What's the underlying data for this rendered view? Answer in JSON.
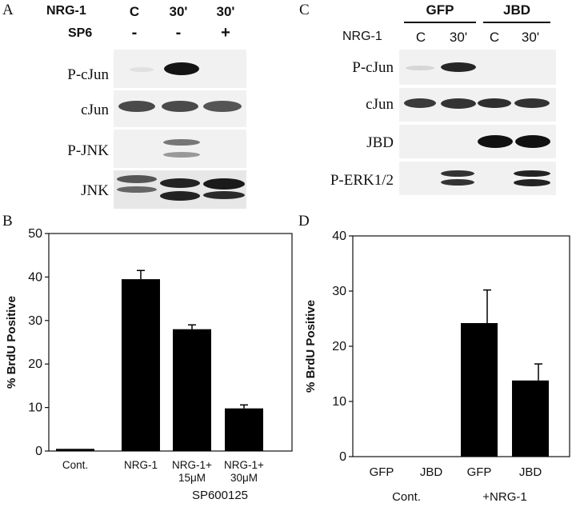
{
  "panel_a": {
    "label": "A",
    "header_rows": [
      {
        "name": "NRG-1",
        "values": [
          "C",
          "30'",
          "30'"
        ]
      },
      {
        "name": "SP6",
        "values": [
          "-",
          "-",
          "+"
        ]
      }
    ],
    "rows": [
      "P-cJun",
      "cJun",
      "P-JNK",
      "JNK"
    ]
  },
  "panel_c": {
    "label": "C",
    "groups": [
      "GFP",
      "JBD"
    ],
    "header_name": "NRG-1",
    "lanes": [
      "C",
      "30'",
      "C",
      "30'"
    ],
    "rows": [
      "P-cJun",
      "cJun",
      "JBD",
      "P-ERK1/2"
    ]
  },
  "chart_data": [
    {
      "panel": "B",
      "type": "bar",
      "categories": [
        "Cont.",
        "NRG-1",
        "NRG-1+ 15μM",
        "NRG-1+ 30μM"
      ],
      "values": [
        0.5,
        39.5,
        28,
        9.8
      ],
      "errors": [
        0,
        2,
        1,
        0.8
      ],
      "ylabel": "% BrdU Positive",
      "ylim": [
        0,
        50
      ],
      "yticks": [
        0,
        10,
        20,
        30,
        40,
        50
      ],
      "group_label": "SP600125",
      "grid": false
    },
    {
      "panel": "D",
      "type": "bar",
      "categories": [
        "GFP",
        "JBD",
        "GFP",
        "JBD"
      ],
      "values": [
        0,
        0,
        24.2,
        13.8
      ],
      "errors": [
        0,
        0,
        6,
        3
      ],
      "ylabel": "% BrdU Positive",
      "ylim": [
        0,
        40
      ],
      "yticks": [
        0,
        10,
        20,
        30,
        40
      ],
      "group_labels": [
        "Cont.",
        "+NRG-1"
      ],
      "grid": false
    }
  ]
}
